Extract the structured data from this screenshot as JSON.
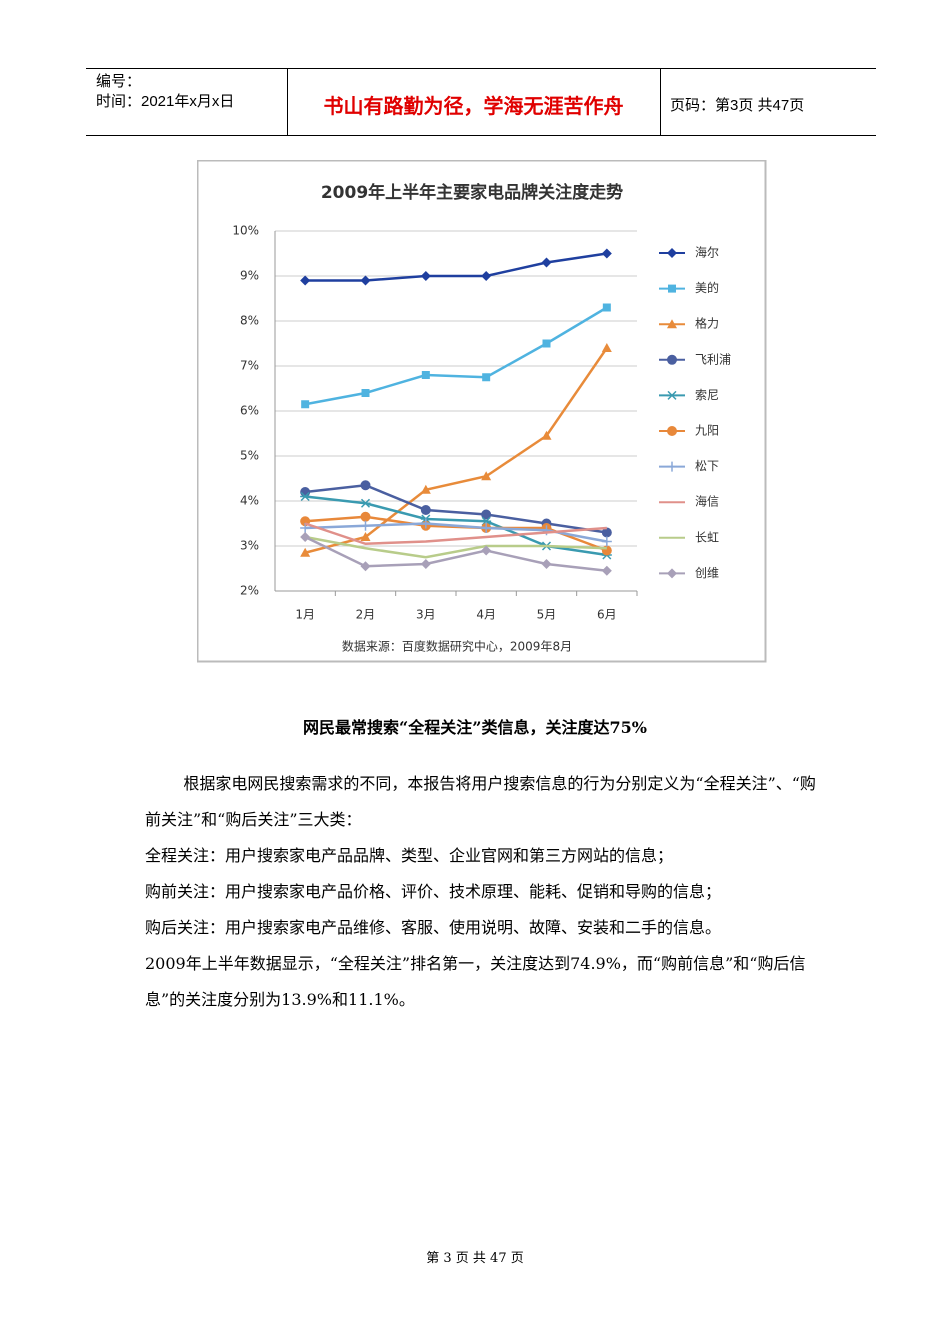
{
  "header": {
    "number": "编号：",
    "date": "时间：2021年x月x日",
    "motto": "书山有路勤为径，学海无涯苦作舟",
    "page": "页码：第3页 共47页"
  },
  "chart_data": {
    "type": "line",
    "title": "2009年上半年主要家电品牌关注度走势",
    "source": "数据来源：百度数据研究中心，2009年8月",
    "categories": [
      "1月",
      "2月",
      "3月",
      "4月",
      "5月",
      "6月"
    ],
    "ylim": [
      2,
      10
    ],
    "yticks": [
      {
        "value": 2,
        "label": "2%"
      },
      {
        "value": 3,
        "label": "3%"
      },
      {
        "value": 4,
        "label": "4%"
      },
      {
        "value": 5,
        "label": "5%"
      },
      {
        "value": 6,
        "label": "6%"
      },
      {
        "value": 7,
        "label": "7%"
      },
      {
        "value": 8,
        "label": "8%"
      },
      {
        "value": 9,
        "label": "9%"
      },
      {
        "value": 10,
        "label": "10%"
      }
    ],
    "grid": true,
    "legend": "right",
    "series": [
      {
        "name": "海尔",
        "color": "#1f3f9f",
        "marker": "diamond",
        "values": [
          8.9,
          8.9,
          9.0,
          9.0,
          9.3,
          9.5
        ]
      },
      {
        "name": "美的",
        "color": "#4fb3e0",
        "marker": "square",
        "values": [
          6.15,
          6.4,
          6.8,
          6.75,
          7.5,
          8.3
        ]
      },
      {
        "name": "格力",
        "color": "#e88b3a",
        "marker": "triangle",
        "values": [
          2.85,
          3.2,
          4.25,
          4.55,
          5.45,
          7.4
        ]
      },
      {
        "name": "飞利浦",
        "color": "#4a5fa0",
        "marker": "circle",
        "values": [
          4.2,
          4.35,
          3.8,
          3.7,
          3.5,
          3.3
        ]
      },
      {
        "name": "索尼",
        "color": "#3a9ab0",
        "marker": "asterisk",
        "values": [
          4.1,
          3.95,
          3.6,
          3.55,
          3.0,
          2.8
        ]
      },
      {
        "name": "九阳",
        "color": "#e8883a",
        "marker": "circle",
        "values": [
          3.55,
          3.65,
          3.45,
          3.4,
          3.4,
          2.9
        ]
      },
      {
        "name": "松下",
        "color": "#8aa8d8",
        "marker": "plus",
        "values": [
          3.4,
          3.45,
          3.5,
          3.4,
          3.35,
          3.1
        ]
      },
      {
        "name": "海信",
        "color": "#e0908a",
        "marker": "none",
        "values": [
          3.5,
          3.05,
          3.1,
          3.2,
          3.3,
          3.4
        ]
      },
      {
        "name": "长虹",
        "color": "#b8cc8a",
        "marker": "none",
        "values": [
          3.2,
          2.95,
          2.75,
          3.0,
          3.0,
          2.95
        ]
      },
      {
        "name": "创维",
        "color": "#a8a0b8",
        "marker": "diamond",
        "values": [
          3.2,
          2.55,
          2.6,
          2.9,
          2.6,
          2.45
        ]
      }
    ]
  },
  "body": {
    "heading": "网民最常搜索“全程关注”类信息，关注度达75%",
    "paragraphs": [
      "根据家电网民搜索需求的不同，本报告将用户搜索信息的行为分别定义为“全程关注”、“购前关注”和“购后关注”三大类：",
      "全程关注：用户搜索家电产品品牌、类型、企业官网和第三方网站的信息；",
      "购前关注：用户搜索家电产品价格、评价、技术原理、能耗、促销和导购的信息；",
      "购后关注：用户搜索家电产品维修、客服、使用说明、故障、安装和二手的信息。",
      "2009年上半年数据显示，“全程关注”排名第一，关注度达到74.9%，而“购前信息”和“购后信息”的关注度分别为13.9%和11.1%。"
    ]
  },
  "footer": "第 3 页 共 47 页"
}
